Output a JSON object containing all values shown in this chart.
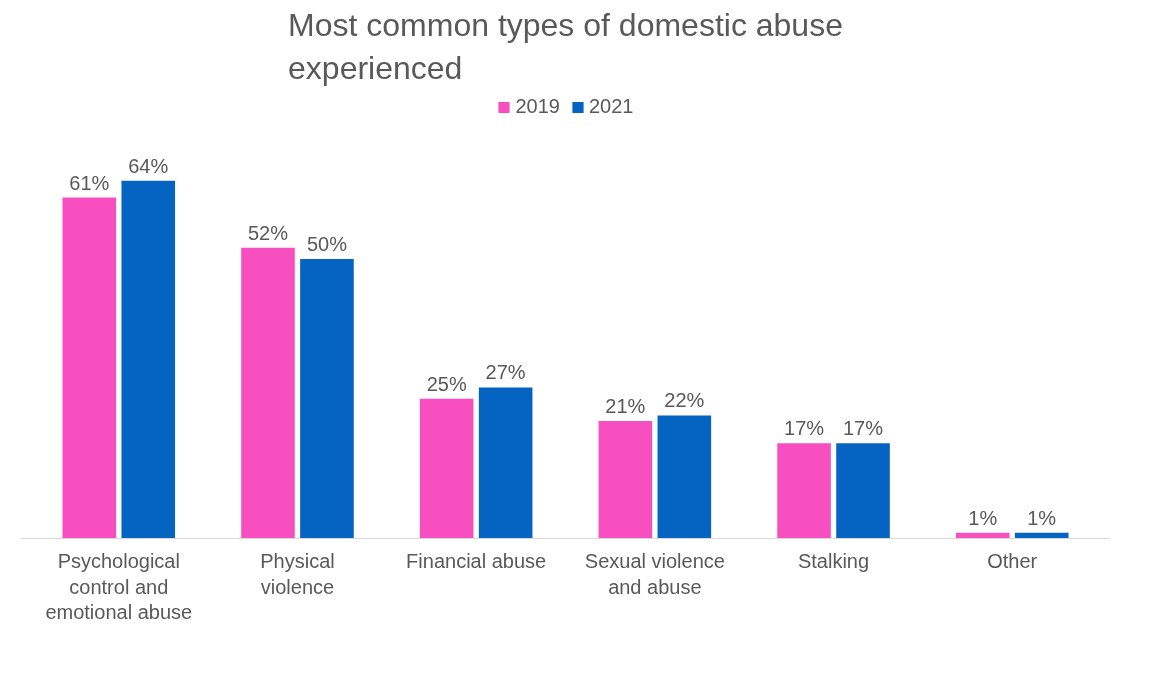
{
  "chart_data": {
    "type": "bar",
    "title": "Most common types of domestic abuse experienced",
    "categories": [
      "Psychological control and emotional abuse",
      "Physical violence",
      "Financial abuse",
      "Sexual violence and abuse",
      "Stalking",
      "Other"
    ],
    "series": [
      {
        "name": "2019",
        "color": "#f74fbf",
        "values": [
          61,
          52,
          25,
          21,
          17,
          1
        ],
        "value_labels": [
          "61%",
          "52%",
          "25%",
          "21%",
          "17%",
          "1%"
        ]
      },
      {
        "name": "2021",
        "color": "#0563c1",
        "values": [
          64,
          50,
          27,
          22,
          17,
          1
        ],
        "value_labels": [
          "64%",
          "50%",
          "27%",
          "22%",
          "17%",
          "1%"
        ]
      }
    ],
    "legend": "top",
    "grid": false
  }
}
